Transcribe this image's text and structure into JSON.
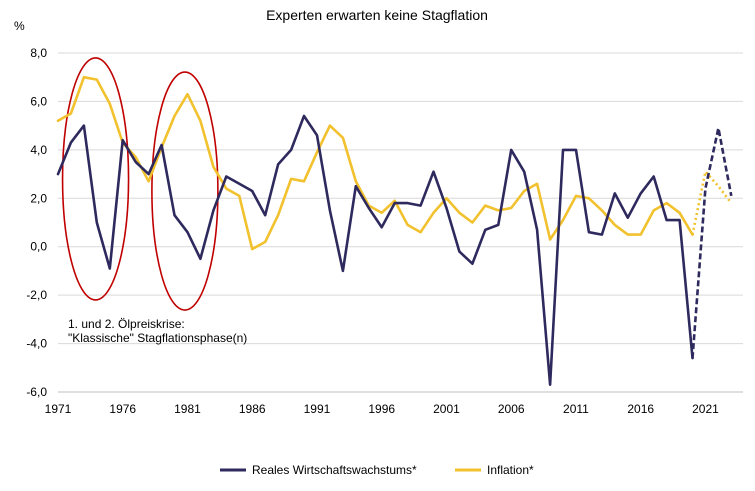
{
  "chart_data": {
    "type": "line",
    "title": "Experten erwarten keine Stagflation",
    "ylabel": "%",
    "xlabel": "",
    "ylim": [
      -6,
      8
    ],
    "yticks": [
      8,
      6,
      4,
      2,
      0,
      -2,
      -4,
      -6
    ],
    "ytick_labels": [
      "8,0",
      "6,0",
      "4,0",
      "2,0",
      "0,0",
      "-2,0",
      "-4,0",
      "-6,0"
    ],
    "xlim": [
      1971,
      2023
    ],
    "xticks": [
      1971,
      1976,
      1981,
      1986,
      1991,
      1996,
      2001,
      2006,
      2011,
      2016,
      2021
    ],
    "xtick_labels": [
      "1971",
      "1976",
      "1981",
      "1986",
      "1991",
      "1996",
      "2001",
      "2006",
      "2011",
      "2016",
      "2021"
    ],
    "grid": true,
    "legend_position": "bottom",
    "annotation": [
      "1. und 2. Ölpreiskrise:",
      "\"Klassische\" Stagflationsphase(n)"
    ],
    "highlight_ellipses": [
      {
        "x_center": 1973.9,
        "y_center": 2.8
      },
      {
        "x_center": 1980.8,
        "y_center": 2.3
      }
    ],
    "series": [
      {
        "name": "Reales Wirtschaftswachstums*",
        "color": "#2e2a5e",
        "x": [
          1971,
          1972,
          1973,
          1974,
          1975,
          1976,
          1977,
          1978,
          1979,
          1980,
          1981,
          1982,
          1983,
          1984,
          1985,
          1986,
          1987,
          1988,
          1989,
          1990,
          1991,
          1992,
          1993,
          1994,
          1995,
          1996,
          1997,
          1998,
          1999,
          2000,
          2001,
          2002,
          2003,
          2004,
          2005,
          2006,
          2007,
          2008,
          2009,
          2010,
          2011,
          2012,
          2013,
          2014,
          2015,
          2016,
          2017,
          2018,
          2019,
          2020
        ],
        "values": [
          3.0,
          4.3,
          5.0,
          1.0,
          -0.9,
          4.4,
          3.5,
          3.0,
          4.2,
          1.3,
          0.6,
          -0.5,
          1.5,
          2.9,
          2.6,
          2.3,
          1.3,
          3.4,
          4.0,
          5.4,
          4.6,
          1.5,
          -1.0,
          2.5,
          1.6,
          0.8,
          1.8,
          1.8,
          1.7,
          3.1,
          1.6,
          -0.2,
          -0.7,
          0.7,
          0.9,
          4.0,
          3.1,
          0.7,
          -5.7,
          4.0,
          4.0,
          0.6,
          0.5,
          2.2,
          1.2,
          2.2,
          2.9,
          1.1,
          1.1,
          -4.6
        ],
        "forecast": {
          "x": [
            2020,
            2021,
            2022,
            2023
          ],
          "values": [
            -4.6,
            2.4,
            4.9,
            2.1
          ],
          "style": "dashed/dotted"
        }
      },
      {
        "name": "Inflation*",
        "color": "#f2c12e",
        "x": [
          1971,
          1972,
          1973,
          1974,
          1975,
          1976,
          1977,
          1978,
          1979,
          1980,
          1981,
          1982,
          1983,
          1984,
          1985,
          1986,
          1987,
          1988,
          1989,
          1990,
          1991,
          1992,
          1993,
          1994,
          1995,
          1996,
          1997,
          1998,
          1999,
          2000,
          2001,
          2002,
          2003,
          2004,
          2005,
          2006,
          2007,
          2008,
          2009,
          2010,
          2011,
          2012,
          2013,
          2014,
          2015,
          2016,
          2017,
          2018,
          2019,
          2020
        ],
        "values": [
          5.2,
          5.5,
          7.0,
          6.9,
          5.9,
          4.3,
          3.7,
          2.7,
          4.1,
          5.4,
          6.3,
          5.2,
          3.3,
          2.4,
          2.1,
          -0.1,
          0.2,
          1.3,
          2.8,
          2.7,
          3.9,
          5.0,
          4.5,
          2.7,
          1.7,
          1.4,
          1.9,
          0.9,
          0.6,
          1.4,
          2.0,
          1.4,
          1.0,
          1.7,
          1.5,
          1.6,
          2.3,
          2.6,
          0.3,
          1.1,
          2.1,
          2.0,
          1.5,
          0.9,
          0.5,
          0.5,
          1.5,
          1.8,
          1.4,
          0.5
        ],
        "forecast": {
          "x": [
            2020,
            2021,
            2022,
            2023
          ],
          "values": [
            0.5,
            3.1,
            2.5,
            1.8
          ],
          "style": "dotted"
        }
      }
    ]
  }
}
